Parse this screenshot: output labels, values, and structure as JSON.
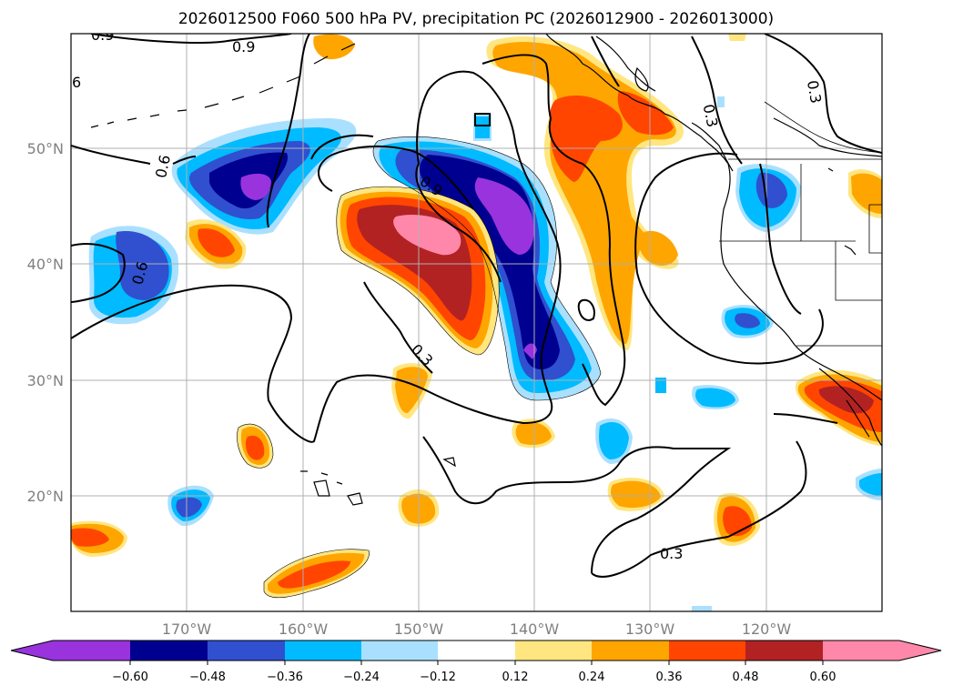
{
  "title": "2026012500 F060 500 hPa PV, precipitation PC (2026012900 - 2026013000)",
  "map": {
    "lon_ticks": [
      "170°W",
      "160°W",
      "150°W",
      "140°W",
      "130°W",
      "120°W"
    ],
    "lat_ticks": [
      "50°N",
      "40°N",
      "30°N",
      "20°N"
    ],
    "contour_labels": [
      "0.9",
      "0.9",
      "6",
      "0.6",
      "0.9",
      "0.6",
      "0.3",
      "0.3",
      "0.3",
      "0.3"
    ]
  },
  "colorbar": {
    "ticks": [
      "−0.60",
      "−0.48",
      "−0.36",
      "−0.24",
      "−0.12",
      "0.12",
      "0.24",
      "0.36",
      "0.48",
      "0.60"
    ],
    "colors": {
      "lt_min": "#9933dd",
      "n060": "#000090",
      "n048": "#3050d0",
      "n036": "#00bbff",
      "n024": "#aae0ff",
      "zero": "#ffffff",
      "p012": "#ffe680",
      "p024": "#ffa500",
      "p036": "#ff4500",
      "p048": "#b22222",
      "gt_max": "#ff88aa"
    }
  }
}
